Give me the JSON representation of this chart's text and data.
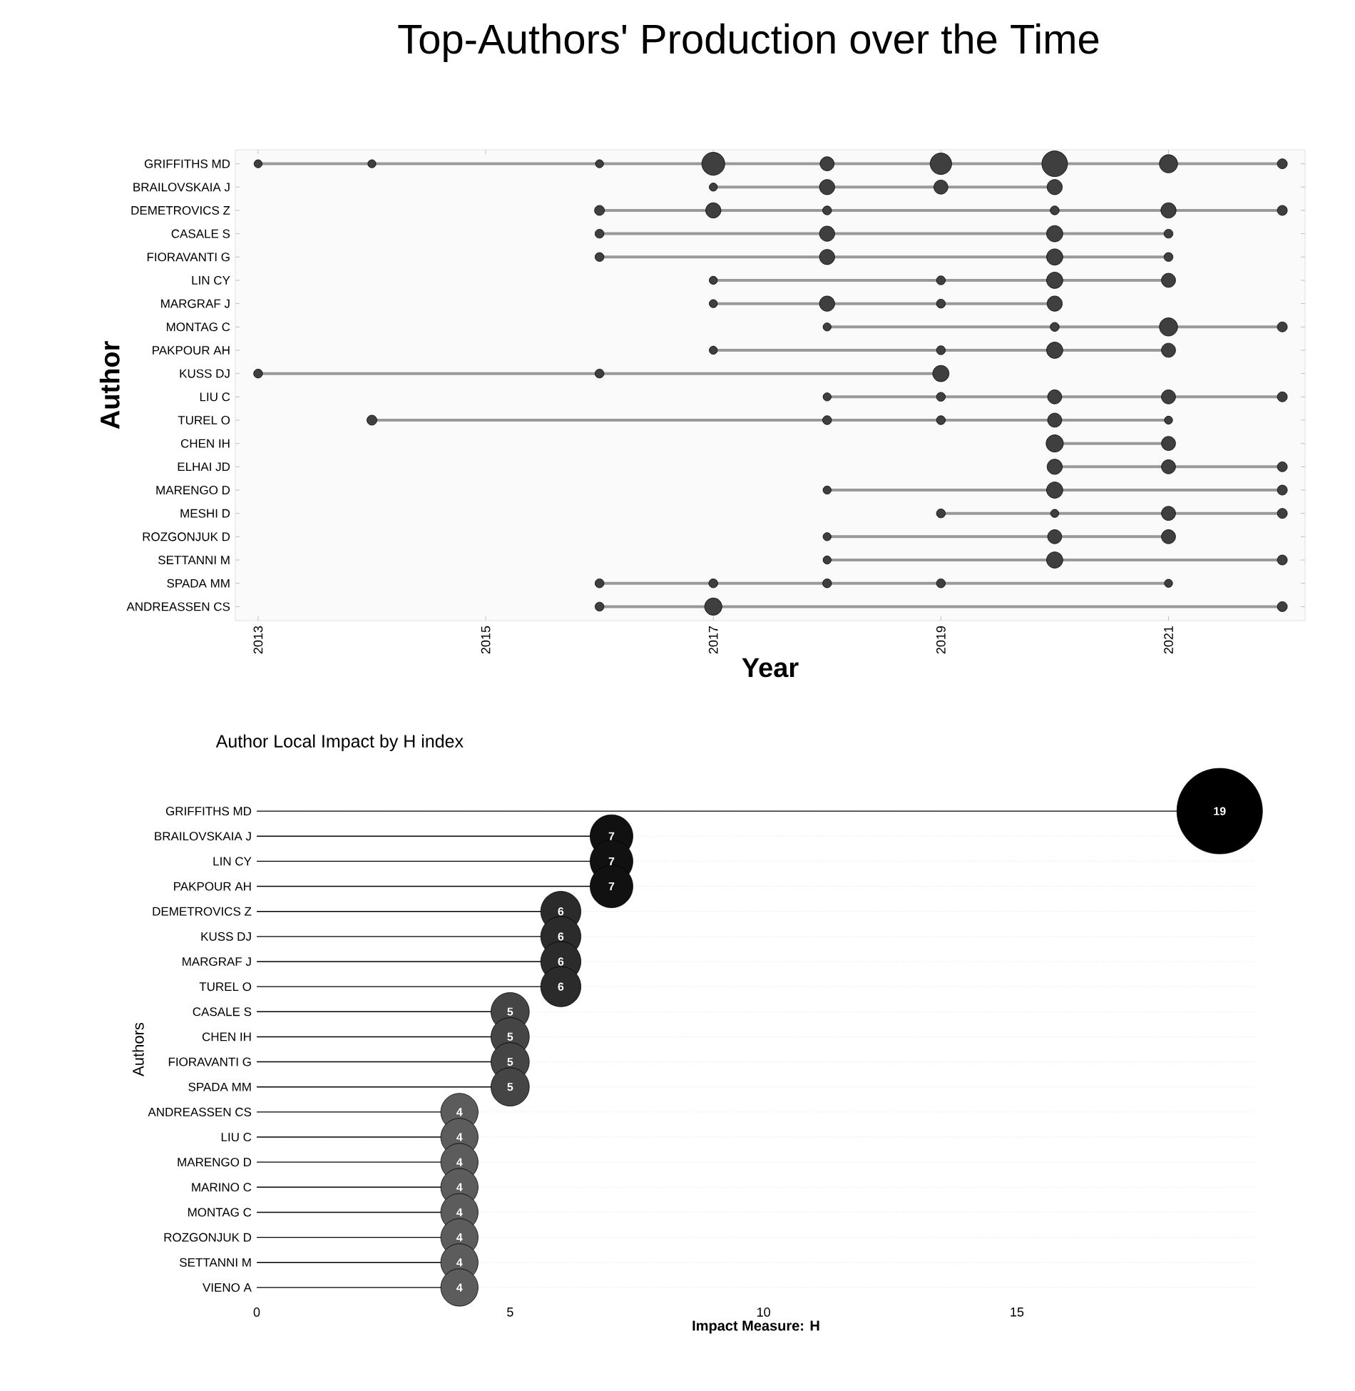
{
  "chart_data": [
    {
      "type": "bubble",
      "title": "Top-Authors' Production over the Time",
      "xlabel": "Year",
      "ylabel": "Author",
      "orientation": "horizontal",
      "color": "#3f3f3f",
      "xlim": [
        2012.8,
        2022.2
      ],
      "xticks": [
        2013,
        2015,
        2017,
        2019,
        2021
      ],
      "categories": [
        "GRIFFITHS MD",
        "BRAILOVSKAIA J",
        "DEMETROVICS Z",
        "CASALE S",
        "FIORAVANTI G",
        "LIN CY",
        "MARGRAF J",
        "MONTAG C",
        "PAKPOUR AH",
        "KUSS DJ",
        "LIU C",
        "TUREL O",
        "CHEN IH",
        "ELHAI JD",
        "MARENGO D",
        "MESHI D",
        "ROZGONJUK D",
        "SETTANNI M",
        "SPADA MM",
        "ANDREASSEN CS"
      ],
      "series": [
        {
          "values": [
            2013,
            null,
            null,
            null,
            null,
            null,
            null,
            null,
            null,
            2013,
            null,
            null,
            null,
            null,
            null,
            null,
            null,
            null,
            null,
            null
          ],
          "sizes": [
            0.1,
            null,
            null,
            null,
            null,
            null,
            null,
            null,
            null,
            0.12,
            null,
            null,
            null,
            null,
            null,
            null,
            null,
            null,
            null,
            null
          ]
        },
        {
          "values": [
            2014,
            null,
            null,
            null,
            null,
            null,
            null,
            null,
            null,
            null,
            null,
            2014,
            null,
            null,
            null,
            null,
            null,
            null,
            null,
            null
          ],
          "sizes": [
            0.1,
            null,
            null,
            null,
            null,
            null,
            null,
            null,
            null,
            null,
            null,
            0.15,
            null,
            null,
            null,
            null,
            null,
            null,
            null,
            null
          ]
        },
        {
          "values": [
            2016,
            null,
            2016,
            2016,
            2016,
            null,
            null,
            null,
            null,
            2016,
            null,
            null,
            null,
            null,
            null,
            null,
            null,
            null,
            2016,
            2016
          ],
          "sizes": [
            0.1,
            null,
            0.15,
            0.12,
            0.12,
            null,
            null,
            null,
            null,
            0.12,
            null,
            null,
            null,
            null,
            null,
            null,
            null,
            null,
            0.12,
            0.12
          ]
        },
        {
          "values": [
            2017,
            2017,
            2017,
            null,
            null,
            2017,
            2017,
            null,
            2017,
            null,
            null,
            null,
            null,
            null,
            null,
            null,
            null,
            null,
            2017,
            2017
          ],
          "sizes": [
            0.8,
            0.1,
            0.35,
            null,
            null,
            0.1,
            0.1,
            null,
            0.1,
            null,
            null,
            null,
            null,
            null,
            null,
            null,
            null,
            null,
            0.12,
            0.45
          ]
        },
        {
          "values": [
            2018,
            2018,
            2018,
            2018,
            2018,
            null,
            2018,
            2018,
            null,
            null,
            2018,
            2018,
            null,
            null,
            2018,
            null,
            2018,
            2018,
            2018,
            null
          ],
          "sizes": [
            0.3,
            0.35,
            0.12,
            0.35,
            0.35,
            null,
            0.35,
            0.1,
            null,
            null,
            0.1,
            0.12,
            null,
            null,
            0.1,
            null,
            0.1,
            0.1,
            0.12,
            null
          ]
        },
        {
          "values": [
            2019,
            2019,
            null,
            null,
            null,
            2019,
            2019,
            null,
            2019,
            2019,
            2019,
            2019,
            null,
            null,
            null,
            2019,
            null,
            null,
            2019,
            null
          ],
          "sizes": [
            0.7,
            0.3,
            null,
            null,
            null,
            0.12,
            0.12,
            null,
            0.12,
            0.4,
            0.12,
            0.12,
            null,
            null,
            null,
            0.12,
            null,
            null,
            0.12,
            null
          ]
        },
        {
          "values": [
            2020,
            2020,
            2020,
            2020,
            2020,
            2020,
            2020,
            2020,
            2020,
            null,
            2020,
            2020,
            2020,
            2020,
            2020,
            2020,
            2020,
            2020,
            null,
            null
          ],
          "sizes": [
            1,
            0.35,
            0.12,
            0.4,
            0.4,
            0.4,
            0.35,
            0.12,
            0.4,
            null,
            0.3,
            0.3,
            0.45,
            0.35,
            0.4,
            0.1,
            0.3,
            0.4,
            null,
            null
          ]
        },
        {
          "values": [
            2021,
            null,
            2021,
            2021,
            2021,
            2021,
            null,
            2021,
            2021,
            null,
            2021,
            2021,
            2021,
            2021,
            null,
            2021,
            2021,
            null,
            2021,
            null
          ],
          "sizes": [
            0.5,
            null,
            0.35,
            0.12,
            0.12,
            0.3,
            null,
            0.5,
            0.3,
            null,
            0.3,
            0.1,
            0.3,
            0.3,
            null,
            0.3,
            0.3,
            null,
            0.1,
            null
          ]
        },
        {
          "values": [
            2022,
            null,
            2022,
            null,
            null,
            null,
            null,
            2022,
            null,
            null,
            2022,
            null,
            null,
            2022,
            2022,
            2022,
            null,
            2022,
            null,
            2022
          ],
          "sizes": [
            0.15,
            null,
            0.15,
            null,
            null,
            null,
            null,
            0.15,
            null,
            null,
            0.15,
            null,
            null,
            0.15,
            0.15,
            0.15,
            null,
            0.15,
            null,
            0.15
          ]
        }
      ]
    },
    {
      "type": "lollipop",
      "title": "Author Local Impact by H index",
      "xlabel": "Impact Measure: H",
      "ylabel": "Authors",
      "orientation": "horizontal",
      "data_labels": true,
      "grid": "y",
      "xlim": [
        0,
        19.7
      ],
      "xticks": [
        0,
        5,
        10,
        15
      ],
      "categories": [
        "GRIFFITHS MD",
        "BRAILOVSKAIA J",
        "LIN CY",
        "PAKPOUR AH",
        "DEMETROVICS Z",
        "KUSS DJ",
        "MARGRAF J",
        "TUREL O",
        "CASALE S",
        "CHEN IH",
        "FIORAVANTI G",
        "SPADA MM",
        "ANDREASSEN CS",
        "LIU C",
        "MARENGO D",
        "MARINO C",
        "MONTAG C",
        "ROZGONJUK D",
        "SETTANNI M",
        "VIENO A"
      ],
      "values": [
        19,
        7,
        7,
        7,
        6,
        6,
        6,
        6,
        5,
        5,
        5,
        5,
        4,
        4,
        4,
        4,
        4,
        4,
        4,
        4
      ],
      "sizes": [
        1,
        0.25,
        0.25,
        0.25,
        0.22,
        0.22,
        0.22,
        0.22,
        0.2,
        0.2,
        0.2,
        0.2,
        0.19,
        0.19,
        0.19,
        0.19,
        0.19,
        0.19,
        0.19,
        0.19
      ],
      "colors": [
        "#000000",
        "#111111",
        "#111111",
        "#111111",
        "#2b2b2b",
        "#2b2b2b",
        "#2b2b2b",
        "#2b2b2b",
        "#454545",
        "#454545",
        "#454545",
        "#454545",
        "#5c5c5c",
        "#5c5c5c",
        "#5c5c5c",
        "#5c5c5c",
        "#5c5c5c",
        "#5c5c5c",
        "#5c5c5c",
        "#5c5c5c"
      ]
    }
  ]
}
